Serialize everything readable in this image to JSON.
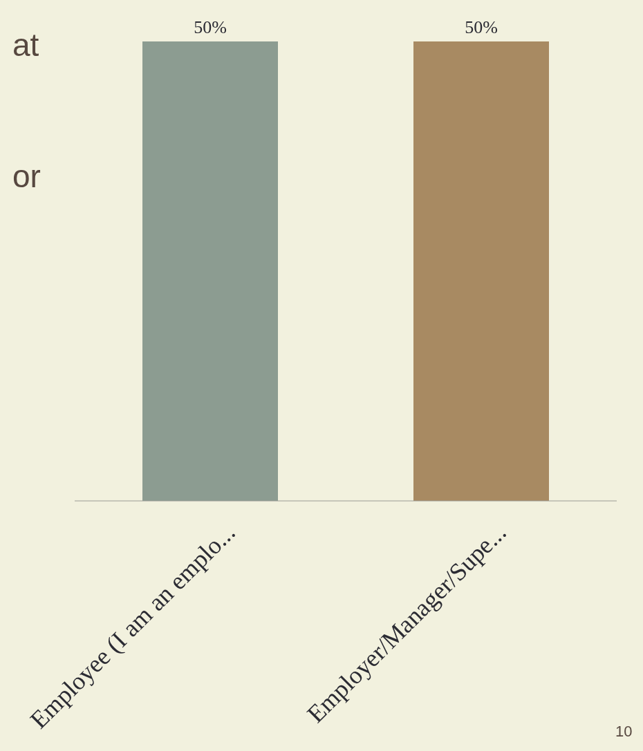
{
  "chart_data": {
    "type": "bar",
    "categories": [
      "Employee (I am an emplo...",
      "Employer/Manager/Supe..."
    ],
    "values": [
      50,
      50
    ],
    "colors": [
      "#8c9c91",
      "#a88a62"
    ],
    "value_labels": [
      "50%",
      "50%"
    ],
    "annotations": [
      "at",
      "or",
      "10"
    ]
  }
}
